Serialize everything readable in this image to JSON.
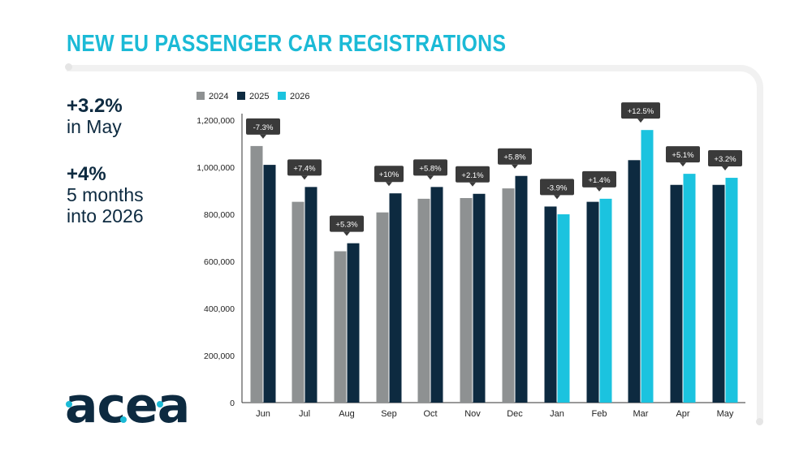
{
  "title": "NEW EU PASSENGER CAR REGISTRATIONS",
  "stats": [
    {
      "big": "+3.2%",
      "lines": [
        "in May"
      ]
    },
    {
      "big": "+4%",
      "lines": [
        "5 months",
        "into 2026"
      ]
    }
  ],
  "logo": "acea",
  "colors": {
    "accent": "#1bbad6",
    "y2024": "#8e9192",
    "y2025": "#0d2a40",
    "y2026": "#1bc3df",
    "label_bg": "#3a3a3a"
  },
  "chart_data": {
    "type": "bar",
    "title": "NEW EU PASSENGER CAR REGISTRATIONS",
    "legend": [
      "2024",
      "2025",
      "2026"
    ],
    "legend_position": "top-left",
    "ylim": [
      0,
      1200000
    ],
    "yticks": [
      {
        "value": 0,
        "label": "0"
      },
      {
        "value": 200000,
        "label": "200,000"
      },
      {
        "value": 400000,
        "label": "400,000"
      },
      {
        "value": 600000,
        "label": "600,000"
      },
      {
        "value": 800000,
        "label": "800,000"
      },
      {
        "value": 1000000,
        "label": "1,000,000"
      },
      {
        "value": 1200000,
        "label": "1,200,000"
      }
    ],
    "categories": [
      "Jun",
      "Jul",
      "Aug",
      "Sep",
      "Oct",
      "Nov",
      "Dec",
      "Jan",
      "Feb",
      "Mar",
      "Apr",
      "May"
    ],
    "groups": [
      {
        "category": "Jun",
        "bars": [
          {
            "series": "2024",
            "value": 1090000
          },
          {
            "series": "2025",
            "value": 1010000
          }
        ],
        "label": "-7.3%"
      },
      {
        "category": "Jul",
        "bars": [
          {
            "series": "2024",
            "value": 853000
          },
          {
            "series": "2025",
            "value": 916000
          }
        ],
        "label": "+7.4%"
      },
      {
        "category": "Aug",
        "bars": [
          {
            "series": "2024",
            "value": 643000
          },
          {
            "series": "2025",
            "value": 677000
          }
        ],
        "label": "+5.3%"
      },
      {
        "category": "Sep",
        "bars": [
          {
            "series": "2024",
            "value": 808000
          },
          {
            "series": "2025",
            "value": 889000
          }
        ],
        "label": "+10%"
      },
      {
        "category": "Oct",
        "bars": [
          {
            "series": "2024",
            "value": 866000
          },
          {
            "series": "2025",
            "value": 916000
          }
        ],
        "label": "+5.8%"
      },
      {
        "category": "Nov",
        "bars": [
          {
            "series": "2024",
            "value": 869000
          },
          {
            "series": "2025",
            "value": 887000
          }
        ],
        "label": "+2.1%"
      },
      {
        "category": "Dec",
        "bars": [
          {
            "series": "2024",
            "value": 910000
          },
          {
            "series": "2025",
            "value": 963000
          }
        ],
        "label": "+5.8%"
      },
      {
        "category": "Jan",
        "bars": [
          {
            "series": "2025",
            "value": 833000
          },
          {
            "series": "2026",
            "value": 800000
          }
        ],
        "label": "-3.9%"
      },
      {
        "category": "Feb",
        "bars": [
          {
            "series": "2025",
            "value": 853000
          },
          {
            "series": "2026",
            "value": 866000
          }
        ],
        "label": "+1.4%"
      },
      {
        "category": "Mar",
        "bars": [
          {
            "series": "2025",
            "value": 1030000
          },
          {
            "series": "2026",
            "value": 1158000
          }
        ],
        "label": "+12.5%"
      },
      {
        "category": "Apr",
        "bars": [
          {
            "series": "2025",
            "value": 925000
          },
          {
            "series": "2026",
            "value": 972000
          }
        ],
        "label": "+5.1%"
      },
      {
        "category": "May",
        "bars": [
          {
            "series": "2025",
            "value": 925000
          },
          {
            "series": "2026",
            "value": 955000
          }
        ],
        "label": "+3.2%"
      }
    ]
  }
}
